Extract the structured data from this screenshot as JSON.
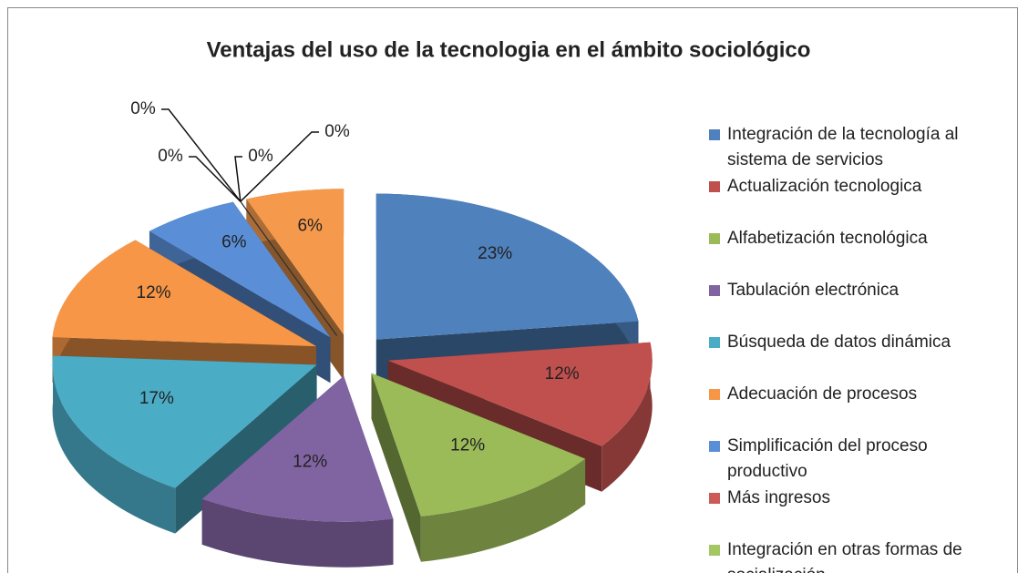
{
  "chart_data": {
    "type": "pie",
    "title": "Ventajas del uso de la tecnologia en el ámbito sociológico",
    "categories": [
      "Integración de la tecnología al sistema de servicios",
      "Actualización tecnologica",
      "Alfabetización tecnológica",
      "Tabulación electrónica",
      "Búsqueda de datos dinámica",
      "Adecuación de procesos",
      "Simplificación del proceso productivo",
      "Más ingresos",
      "Integración en otras formas de socialización",
      null,
      null,
      null
    ],
    "values": [
      23,
      12,
      12,
      12,
      17,
      12,
      6,
      0,
      0,
      0,
      0,
      6
    ],
    "value_labels": [
      "23%",
      "12%",
      "12%",
      "12%",
      "17%",
      "12%",
      "6%",
      "0%",
      "0%",
      "0%",
      "0%",
      "6%"
    ],
    "colors": [
      "#4f81bd",
      "#c0504d",
      "#9bbb59",
      "#8064a2",
      "#4bacc6",
      "#f79646",
      "#5a8fd8",
      "#cc5a57",
      "#a3c763",
      "#8a6caf",
      "#52b7d2",
      "#f59a4c"
    ],
    "legend": "right"
  }
}
